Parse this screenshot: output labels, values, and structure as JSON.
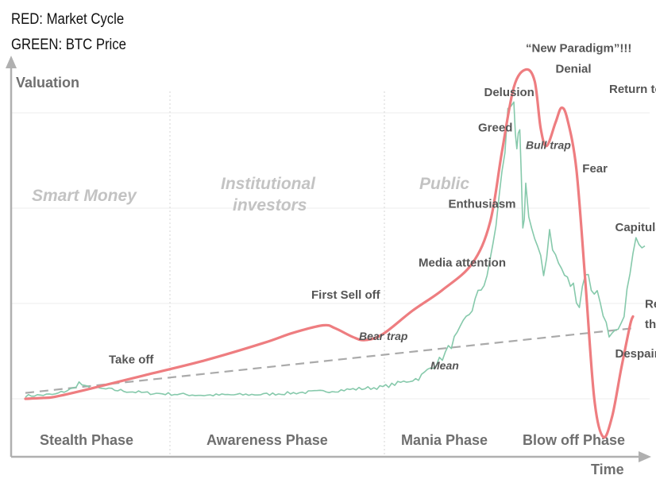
{
  "legend": {
    "red": "RED: Market Cycle",
    "green": "GREEN: BTC Price"
  },
  "chart_data": {
    "type": "line",
    "xlabel": "Time",
    "ylabel": "Valuation",
    "grid": true,
    "colors": {
      "market_cycle": "#ee7d80",
      "btc_price": "#86c9ab",
      "trend": "#aaaaaa"
    },
    "series": [
      {
        "name": "Market Cycle",
        "points": [
          [
            0,
            0
          ],
          [
            3,
            0.3
          ],
          [
            5,
            0.7
          ],
          [
            10,
            3
          ],
          [
            20,
            8
          ],
          [
            30,
            13
          ],
          [
            40,
            19
          ],
          [
            45,
            22.5
          ],
          [
            50,
            25
          ],
          [
            52,
            24
          ],
          [
            55,
            21
          ],
          [
            57,
            20
          ],
          [
            60,
            22
          ],
          [
            65,
            30
          ],
          [
            70,
            37
          ],
          [
            75,
            46
          ],
          [
            78,
            60
          ],
          [
            80,
            84
          ],
          [
            82,
            106
          ],
          [
            84,
            112
          ],
          [
            85.5,
            108
          ],
          [
            86.5,
            92
          ],
          [
            87.5,
            86
          ],
          [
            89,
            94
          ],
          [
            90,
            99
          ],
          [
            91,
            95
          ],
          [
            92.5,
            78
          ],
          [
            94,
            40
          ],
          [
            95.5,
            0
          ],
          [
            97,
            -13
          ],
          [
            98.5,
            -6
          ],
          [
            100,
            10
          ],
          [
            101.5,
            25
          ],
          [
            102,
            28
          ]
        ]
      },
      {
        "name": "BTC Price",
        "points": [
          [
            0,
            1
          ],
          [
            5,
            1.5
          ],
          [
            8,
            3.5
          ],
          [
            9,
            5.5
          ],
          [
            10,
            4
          ],
          [
            12,
            3.5
          ],
          [
            15,
            3
          ],
          [
            20,
            2
          ],
          [
            30,
            1.2
          ],
          [
            40,
            1.5
          ],
          [
            50,
            2.5
          ],
          [
            60,
            4
          ],
          [
            66,
            7
          ],
          [
            70,
            14
          ],
          [
            73,
            23
          ],
          [
            76,
            35
          ],
          [
            78,
            45
          ],
          [
            80,
            75
          ],
          [
            81,
            96
          ],
          [
            82,
            105
          ],
          [
            82.5,
            80
          ],
          [
            83,
            90
          ],
          [
            83.5,
            55
          ],
          [
            84,
            72
          ],
          [
            85,
            58
          ],
          [
            86,
            50
          ],
          [
            87,
            42
          ],
          [
            88,
            58
          ],
          [
            89,
            48
          ],
          [
            90,
            44
          ],
          [
            91,
            40
          ],
          [
            92,
            38
          ],
          [
            93,
            32
          ],
          [
            94,
            44
          ],
          [
            95,
            38
          ],
          [
            96,
            36
          ],
          [
            97,
            30
          ],
          [
            98,
            20
          ],
          [
            99,
            22
          ],
          [
            100,
            24
          ],
          [
            101,
            36
          ],
          [
            102,
            48
          ],
          [
            103,
            56
          ],
          [
            104,
            52
          ]
        ]
      },
      {
        "name": "Mean",
        "points": [
          [
            0,
            2
          ],
          [
            102,
            24
          ]
        ]
      }
    ],
    "annotations": [
      {
        "text": "Take off",
        "x": 14,
        "y": 12,
        "style": "normal"
      },
      {
        "text": "First Sell off",
        "x": 48,
        "y": 34,
        "style": "normal"
      },
      {
        "text": "Bear trap",
        "x": 56,
        "y": 20,
        "style": "italic"
      },
      {
        "text": "Media attention",
        "x": 66,
        "y": 45,
        "style": "normal"
      },
      {
        "text": "Mean",
        "x": 68,
        "y": 10,
        "style": "italic"
      },
      {
        "text": "Enthusiasm",
        "x": 71,
        "y": 65,
        "style": "normal"
      },
      {
        "text": "Greed",
        "x": 76,
        "y": 91,
        "style": "normal"
      },
      {
        "text": "Delusion",
        "x": 77,
        "y": 103,
        "style": "normal"
      },
      {
        "text": "“New Paradigm”!!!",
        "x": 84,
        "y": 118,
        "style": "normal"
      },
      {
        "text": "Denial",
        "x": 89,
        "y": 111,
        "style": "normal"
      },
      {
        "text": "Bull trap",
        "x": 84,
        "y": 85,
        "style": "italic"
      },
      {
        "text": "Return to “normal”",
        "x": 98,
        "y": 104,
        "style": "normal"
      },
      {
        "text": "Fear",
        "x": 93.5,
        "y": 77,
        "style": "normal"
      },
      {
        "text": "Capitulation",
        "x": 99,
        "y": 57,
        "style": "normal"
      },
      {
        "text": "Despair",
        "x": 99,
        "y": 14,
        "style": "normal"
      },
      {
        "text": "Return to",
        "x": 104,
        "y": 31,
        "style": "normal"
      },
      {
        "text": "the mean",
        "x": 104,
        "y": 24,
        "style": "normal"
      }
    ],
    "groups": [
      "Smart Money",
      "Institutional investors",
      "Public"
    ],
    "phases": [
      "Stealth Phase",
      "Awareness Phase",
      "Mania Phase",
      "Blow off Phase"
    ]
  }
}
